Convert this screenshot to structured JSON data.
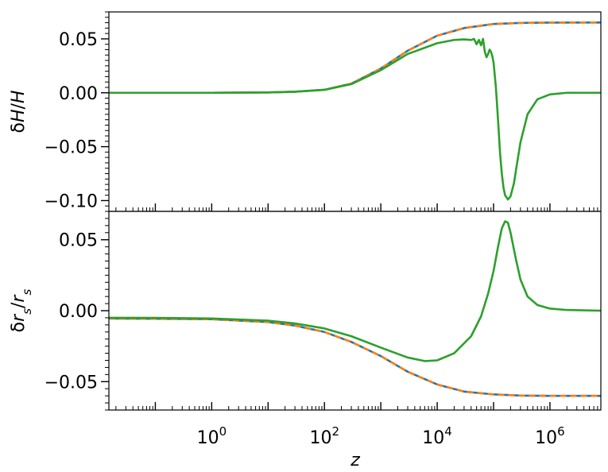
{
  "figure": {
    "xlabel": "z",
    "xticks": [
      {
        "base": "10",
        "exp": "0",
        "value": 1
      },
      {
        "base": "10",
        "exp": "2",
        "value": 100
      },
      {
        "base": "10",
        "exp": "4",
        "value": 10000
      },
      {
        "base": "10",
        "exp": "6",
        "value": 1000000
      }
    ]
  },
  "chart_data": [
    {
      "type": "line",
      "xscale": "log",
      "xlim": [
        0.015,
        8000000
      ],
      "ylim": [
        -0.11,
        0.075
      ],
      "ylabel_parts": [
        {
          "text": "δ",
          "italic": false
        },
        {
          "text": "H",
          "italic": true
        },
        {
          "text": "/",
          "italic": false
        },
        {
          "text": "H",
          "italic": true
        }
      ],
      "yticks": [
        {
          "value": 0.05,
          "label": "0.05"
        },
        {
          "value": 0.0,
          "label": "0.00"
        },
        {
          "value": -0.05,
          "label": "−0.05"
        },
        {
          "value": -0.1,
          "label": "−0.10"
        }
      ],
      "grid": false,
      "series": [
        {
          "color": "#1f77b4",
          "style": "solid",
          "x": [
            0.015,
            1,
            10,
            30,
            100,
            300,
            1000,
            3000,
            10000,
            30000,
            100000,
            300000,
            1000000,
            8000000
          ],
          "y": [
            0,
            0,
            0.0003,
            0.001,
            0.0028,
            0.0085,
            0.0225,
            0.039,
            0.053,
            0.06,
            0.0638,
            0.0648,
            0.0651,
            0.0652
          ]
        },
        {
          "color": "#ff7f0e",
          "style": "dashed",
          "x": [
            0.015,
            1,
            10,
            30,
            100,
            300,
            1000,
            3000,
            10000,
            30000,
            100000,
            300000,
            1000000,
            8000000
          ],
          "y": [
            0,
            0,
            0.0003,
            0.001,
            0.0028,
            0.0085,
            0.0225,
            0.039,
            0.053,
            0.06,
            0.0638,
            0.0648,
            0.0651,
            0.0652
          ]
        },
        {
          "color": "#2ca02c",
          "style": "solid",
          "x": [
            0.015,
            1,
            10,
            30,
            100,
            300,
            1000,
            3000,
            10000,
            20000,
            30000,
            40000,
            45000,
            50000,
            55000,
            60000,
            65000,
            70000,
            75000,
            80000,
            85000,
            90000,
            95000,
            100000,
            110000,
            120000,
            130000,
            140000,
            150000,
            160000,
            180000,
            200000,
            230000,
            260000,
            300000,
            400000,
            600000,
            1000000,
            2000000,
            8000000
          ],
          "y": [
            0,
            0,
            0.0003,
            0.001,
            0.0027,
            0.008,
            0.021,
            0.036,
            0.046,
            0.049,
            0.0495,
            0.049,
            0.05,
            0.045,
            0.049,
            0.044,
            0.05,
            0.038,
            0.033,
            0.036,
            0.04,
            0.038,
            0.034,
            0.028,
            0.005,
            -0.025,
            -0.055,
            -0.075,
            -0.088,
            -0.095,
            -0.099,
            -0.096,
            -0.084,
            -0.066,
            -0.046,
            -0.02,
            -0.006,
            -0.0015,
            0,
            0
          ]
        }
      ]
    },
    {
      "type": "line",
      "xscale": "log",
      "xlim": [
        0.015,
        8000000
      ],
      "ylim": [
        -0.07,
        0.07
      ],
      "ylabel_parts": [
        {
          "text": "δ",
          "italic": false
        },
        {
          "text": "r",
          "italic": true
        },
        {
          "text": "s",
          "italic": true,
          "sub": true
        },
        {
          "text": "/",
          "italic": false
        },
        {
          "text": "r",
          "italic": true
        },
        {
          "text": "s",
          "italic": true,
          "sub": true
        }
      ],
      "yticks": [
        {
          "value": 0.05,
          "label": "0.05"
        },
        {
          "value": 0.0,
          "label": "0.00"
        },
        {
          "value": -0.05,
          "label": "−0.05"
        }
      ],
      "grid": false,
      "series": [
        {
          "color": "#1f77b4",
          "style": "solid",
          "x": [
            0.015,
            0.1,
            1,
            10,
            30,
            100,
            300,
            1000,
            3000,
            10000,
            30000,
            100000,
            300000,
            1000000,
            8000000
          ],
          "y": [
            -0.0055,
            -0.0057,
            -0.006,
            -0.008,
            -0.0105,
            -0.015,
            -0.022,
            -0.032,
            -0.043,
            -0.052,
            -0.057,
            -0.059,
            -0.0598,
            -0.06,
            -0.06
          ]
        },
        {
          "color": "#ff7f0e",
          "style": "dashed",
          "x": [
            0.015,
            0.1,
            1,
            10,
            30,
            100,
            300,
            1000,
            3000,
            10000,
            30000,
            100000,
            300000,
            1000000,
            8000000
          ],
          "y": [
            -0.0055,
            -0.0057,
            -0.006,
            -0.008,
            -0.0105,
            -0.015,
            -0.022,
            -0.032,
            -0.043,
            -0.052,
            -0.057,
            -0.059,
            -0.0598,
            -0.06,
            -0.06
          ]
        },
        {
          "color": "#2ca02c",
          "style": "solid",
          "x": [
            0.015,
            0.1,
            1,
            10,
            30,
            100,
            300,
            1000,
            3000,
            6000,
            10000,
            20000,
            40000,
            60000,
            80000,
            100000,
            120000,
            140000,
            160000,
            180000,
            200000,
            250000,
            300000,
            400000,
            600000,
            1000000,
            2000000,
            8000000
          ],
          "y": [
            -0.005,
            -0.0051,
            -0.0055,
            -0.007,
            -0.009,
            -0.0125,
            -0.018,
            -0.026,
            -0.033,
            -0.0355,
            -0.035,
            -0.03,
            -0.018,
            -0.004,
            0.012,
            0.028,
            0.045,
            0.058,
            0.063,
            0.062,
            0.055,
            0.036,
            0.022,
            0.01,
            0.004,
            0.0015,
            0.0005,
            0
          ]
        }
      ]
    }
  ]
}
